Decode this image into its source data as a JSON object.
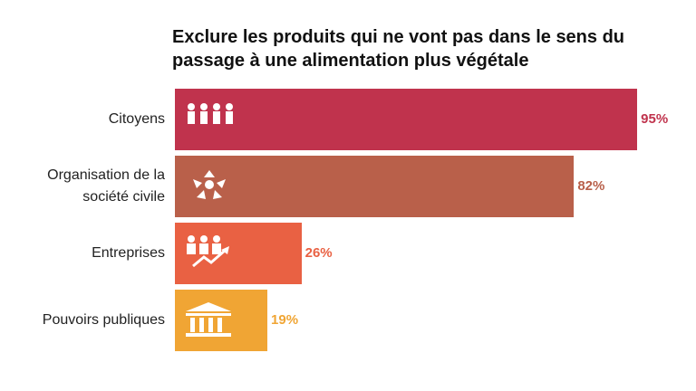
{
  "chart_data": {
    "type": "bar",
    "orientation": "horizontal",
    "title": "Exclure les produits qui ne vont pas dans le sens du passage à une alimentation plus végétale",
    "categories": [
      "Citoyens",
      "Organisation de la société civile",
      "Entreprises",
      "Pouvoirs publiques"
    ],
    "values": [
      95,
      82,
      26,
      19
    ],
    "value_labels": [
      "95%",
      "82%",
      "26%",
      "19%"
    ],
    "colors": [
      "#c0334d",
      "#b9604a",
      "#e96143",
      "#f0a534"
    ]
  }
}
